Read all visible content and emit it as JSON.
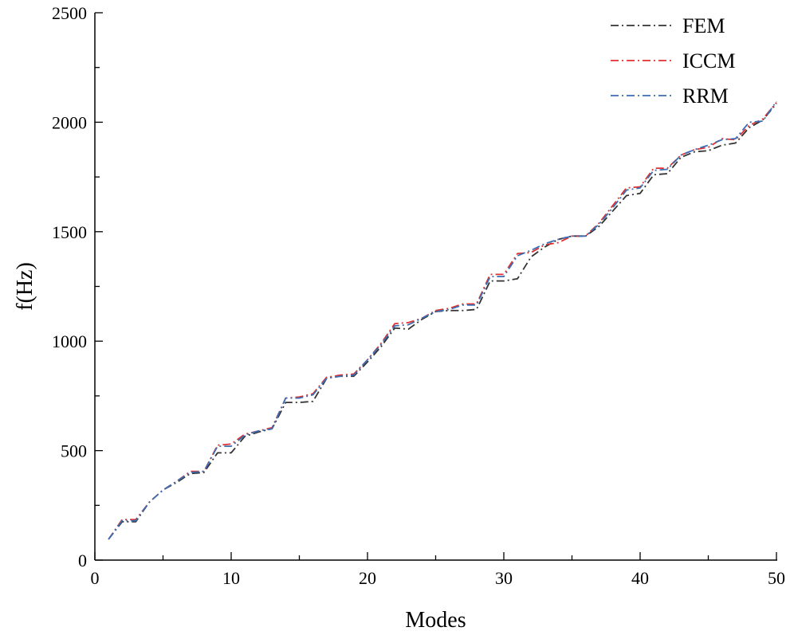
{
  "chart_data": {
    "type": "line",
    "title": "",
    "xlabel": "Modes",
    "ylabel": "f(Hz)",
    "xlim": [
      0,
      50
    ],
    "ylim": [
      0,
      2500
    ],
    "xticks": [
      0,
      10,
      20,
      30,
      40,
      50
    ],
    "yticks": [
      0,
      500,
      1000,
      1500,
      2000,
      2500
    ],
    "grid": false,
    "legend_position": "top-right",
    "x": [
      1,
      2,
      3,
      4,
      5,
      6,
      7,
      8,
      9,
      10,
      11,
      12,
      13,
      14,
      15,
      16,
      17,
      18,
      19,
      20,
      21,
      22,
      23,
      24,
      25,
      26,
      27,
      28,
      29,
      30,
      31,
      32,
      33,
      34,
      35,
      36,
      37,
      38,
      39,
      40,
      41,
      42,
      43,
      44,
      45,
      46,
      47,
      48,
      49,
      50
    ],
    "series": [
      {
        "name": "FEM",
        "color": "#333333",
        "values": [
          95,
          175,
          175,
          265,
          320,
          355,
          395,
          400,
          490,
          490,
          565,
          585,
          600,
          720,
          720,
          725,
          830,
          840,
          840,
          905,
          975,
          1060,
          1055,
          1100,
          1135,
          1140,
          1140,
          1145,
          1275,
          1275,
          1285,
          1385,
          1430,
          1465,
          1480,
          1480,
          1525,
          1595,
          1665,
          1675,
          1760,
          1765,
          1840,
          1865,
          1870,
          1895,
          1905,
          1975,
          2010,
          2085
        ]
      },
      {
        "name": "ICCM",
        "color": "#e03030",
        "values": [
          95,
          185,
          185,
          265,
          320,
          360,
          405,
          405,
          525,
          530,
          575,
          590,
          605,
          740,
          745,
          760,
          835,
          845,
          850,
          915,
          990,
          1080,
          1085,
          1105,
          1140,
          1150,
          1170,
          1170,
          1305,
          1305,
          1400,
          1405,
          1440,
          1450,
          1480,
          1480,
          1540,
          1620,
          1700,
          1705,
          1790,
          1790,
          1850,
          1875,
          1885,
          1925,
          1920,
          1985,
          2015,
          2090
        ]
      },
      {
        "name": "RRM",
        "color": "#3a6fb5",
        "values": [
          95,
          180,
          180,
          265,
          320,
          360,
          400,
          405,
          520,
          520,
          570,
          590,
          600,
          740,
          740,
          755,
          830,
          840,
          845,
          915,
          985,
          1070,
          1075,
          1105,
          1135,
          1145,
          1165,
          1165,
          1295,
          1295,
          1390,
          1415,
          1445,
          1465,
          1480,
          1480,
          1535,
          1610,
          1690,
          1700,
          1780,
          1785,
          1850,
          1875,
          1895,
          1920,
          1925,
          2000,
          2005,
          2095
        ]
      }
    ]
  }
}
